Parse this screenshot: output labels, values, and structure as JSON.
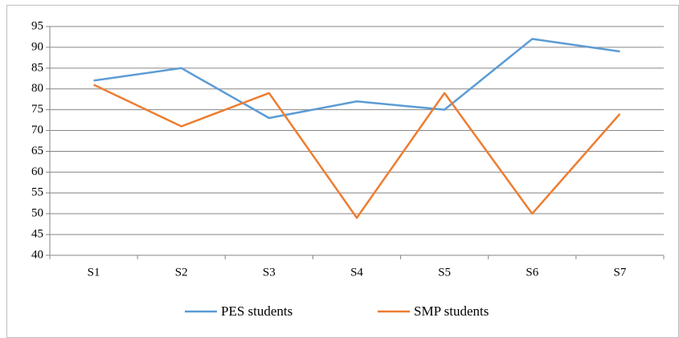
{
  "chart_data": {
    "type": "line",
    "categories": [
      "S1",
      "S2",
      "S3",
      "S4",
      "S5",
      "S6",
      "S7"
    ],
    "series": [
      {
        "name": "PES students",
        "color": "#5b9bd5",
        "values": [
          82,
          85,
          73,
          77,
          75,
          92,
          89
        ]
      },
      {
        "name": "SMP students",
        "color": "#ed7d31",
        "values": [
          81,
          71,
          79,
          49,
          79,
          50,
          74
        ]
      }
    ],
    "ylim": [
      40,
      95
    ],
    "yticks": [
      40,
      45,
      50,
      55,
      60,
      65,
      70,
      75,
      80,
      85,
      90,
      95
    ],
    "grid": true,
    "legend": "bottom"
  }
}
